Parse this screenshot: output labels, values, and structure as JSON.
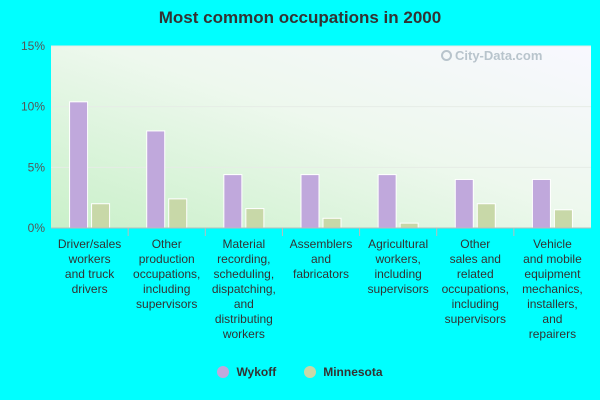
{
  "watermark": "City-Data.com",
  "chart_data": {
    "type": "bar",
    "title": "Most common occupations in 2000",
    "xlabel": "",
    "ylabel": "",
    "ylim": [
      0,
      15
    ],
    "yticks": [
      0,
      5,
      10,
      15
    ],
    "ytick_labels": [
      "0%",
      "5%",
      "10%",
      "15%"
    ],
    "grid": true,
    "legend_position": "bottom-center",
    "categories": [
      [
        "Driver/sales",
        "workers",
        "and truck",
        "drivers"
      ],
      [
        "Other",
        "production",
        "occupations,",
        "including",
        "supervisors"
      ],
      [
        "Material",
        "recording,",
        "scheduling,",
        "dispatching,",
        "and",
        "distributing",
        "workers"
      ],
      [
        "Assemblers",
        "and",
        "fabricators"
      ],
      [
        "Agricultural",
        "workers,",
        "including",
        "supervisors"
      ],
      [
        "Other",
        "sales and",
        "related",
        "occupations,",
        "including",
        "supervisors"
      ],
      [
        "Vehicle",
        "and mobile",
        "equipment",
        "mechanics,",
        "installers,",
        "and",
        "repairers"
      ]
    ],
    "series": [
      {
        "name": "Wykoff",
        "color": "#c0a8dc",
        "values": [
          10.4,
          8.0,
          4.4,
          4.4,
          4.4,
          4.0,
          4.0
        ]
      },
      {
        "name": "Minnesota",
        "color": "#c8d8a8",
        "values": [
          2.0,
          2.4,
          1.6,
          0.8,
          0.4,
          2.0,
          1.5
        ]
      }
    ]
  }
}
